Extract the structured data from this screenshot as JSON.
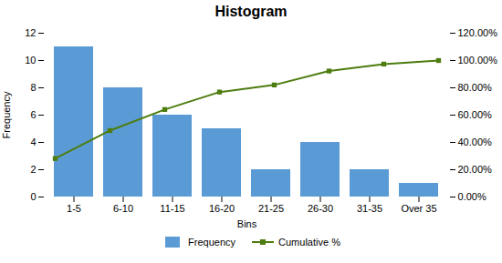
{
  "chart_data": {
    "type": "bar",
    "title": "Histogram",
    "xlabel": "Bins",
    "ylabel": "Frequency",
    "categories": [
      "1-5",
      "6-10",
      "11-15",
      "16-20",
      "21-25",
      "26-30",
      "31-35",
      "Over 35"
    ],
    "series": [
      {
        "name": "Frequency",
        "type": "bar",
        "color": "#5B9BD5",
        "values": [
          11,
          8,
          6,
          5,
          2,
          4,
          2,
          1
        ]
      },
      {
        "name": "Cumulative %",
        "type": "line",
        "axis": "y2",
        "color": "#4D7C0F",
        "marker": "square",
        "values": [
          0.282,
          0.487,
          0.641,
          0.769,
          0.821,
          0.923,
          0.974,
          1.0
        ]
      }
    ],
    "ylim": [
      0,
      12
    ],
    "yticks": [
      0,
      2,
      4,
      6,
      8,
      10,
      12
    ],
    "y2lim": [
      0,
      1.2
    ],
    "y2ticks": [
      {
        "value": 0.0,
        "label": "0.00%"
      },
      {
        "value": 0.2,
        "label": "20.00%"
      },
      {
        "value": 0.4,
        "label": "40.00%"
      },
      {
        "value": 0.6,
        "label": "60.00%"
      },
      {
        "value": 0.8,
        "label": "80.00%"
      },
      {
        "value": 1.0,
        "label": "100.00%"
      },
      {
        "value": 1.2,
        "label": "120.00%"
      }
    ],
    "grid": false,
    "legend": "bottom"
  }
}
